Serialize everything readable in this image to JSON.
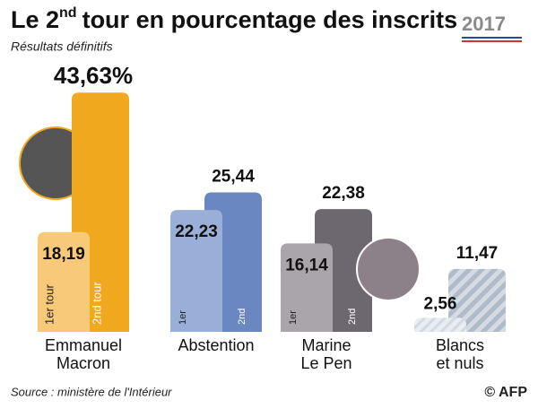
{
  "chart_data": {
    "type": "bar",
    "title": {
      "before": "Le 2",
      "superscript": "nd",
      "after": "tour en pourcentage des inscrits"
    },
    "subtitle": "Résultats définitifs",
    "logo": "2017",
    "source": "Source : ministère de l'Intérieur",
    "credit": "© AFP",
    "categories": [
      [
        "Emmanuel",
        "Macron"
      ],
      [
        "Abstention"
      ],
      [
        "Marine",
        "Le Pen"
      ],
      [
        "Blancs",
        "et nuls"
      ]
    ],
    "hatch": [
      false,
      false,
      false,
      true
    ],
    "ylim": [
      0,
      44
    ],
    "series": [
      {
        "name": "1er tour",
        "short_name": "1er",
        "colors": [
          "#f8c978",
          "#9aafd8",
          "#aaa4ab",
          "#dfe4ea"
        ],
        "values": [
          18.19,
          22.23,
          16.14,
          2.56
        ],
        "value_labels": [
          "18,19",
          "22,23",
          "16,14",
          "2,56"
        ]
      },
      {
        "name": "2nd tour",
        "short_name": "2nd",
        "colors": [
          "#f0a81e",
          "#6a87c1",
          "#6d6770",
          "#b8c4d2"
        ],
        "values": [
          43.63,
          25.44,
          22.38,
          11.47
        ],
        "value_labels": [
          "43,63%",
          "25,44",
          "22,38",
          "11,47"
        ]
      }
    ]
  }
}
